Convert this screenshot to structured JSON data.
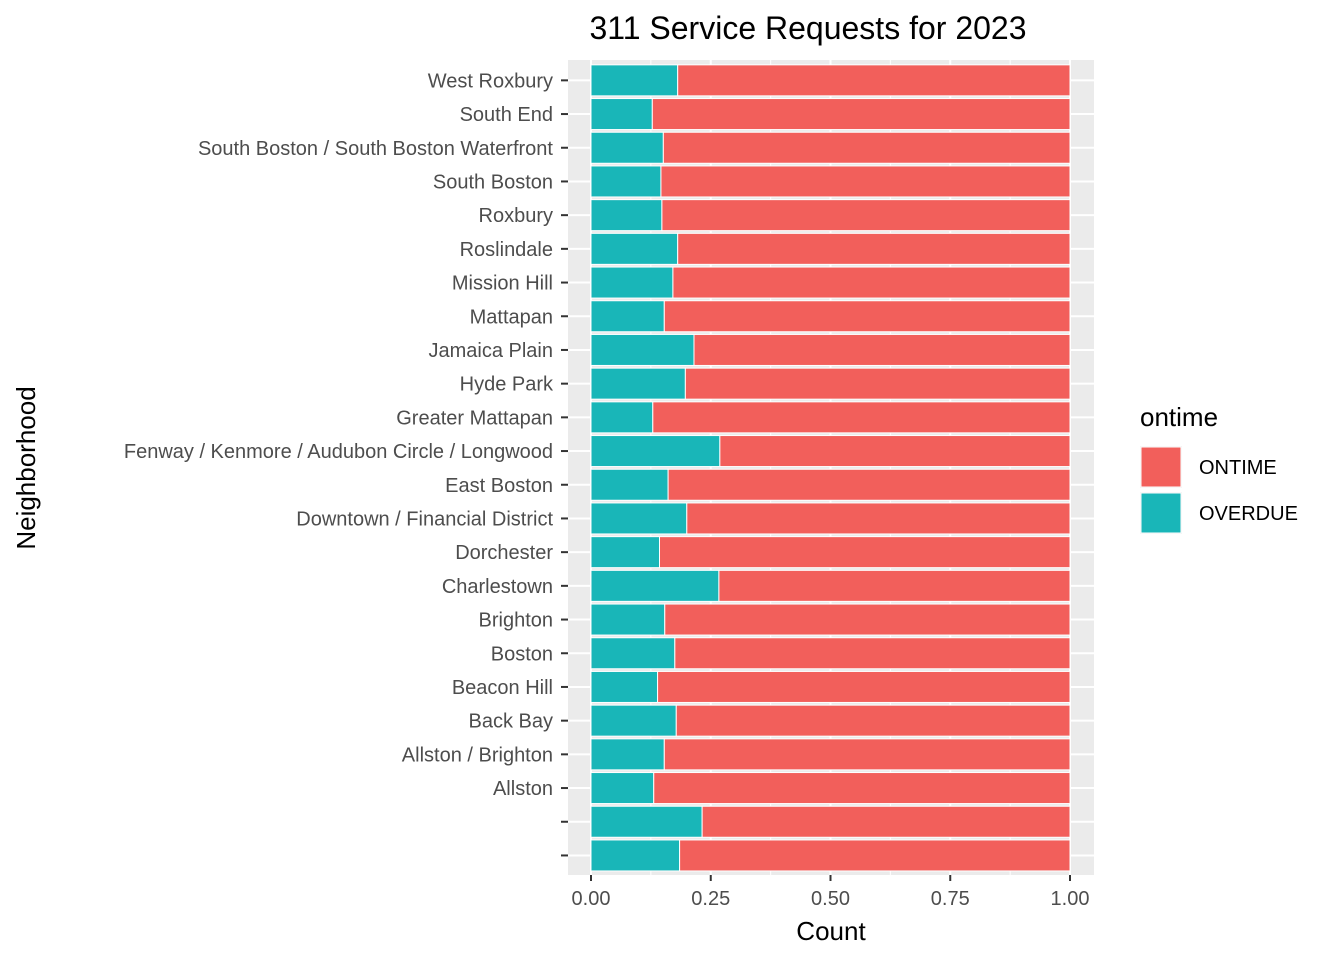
{
  "chart_data": {
    "type": "bar",
    "orientation": "horizontal",
    "stacked": true,
    "title": "311 Service Requests for 2023",
    "xlabel": "Count",
    "ylabel": "Neighborhood",
    "xlim": [
      0,
      1
    ],
    "x_ticks": [
      "0.00",
      "0.25",
      "0.50",
      "0.75",
      "1.00"
    ],
    "x_tick_values": [
      0,
      0.25,
      0.5,
      0.75,
      1.0
    ],
    "grid": true,
    "legend": {
      "title": "ontime",
      "position": "right"
    },
    "categories": [
      "West Roxbury",
      "South End",
      "South Boston / South Boston Waterfront",
      "South Boston",
      "Roxbury",
      "Roslindale",
      "Mission Hill",
      "Mattapan",
      "Jamaica Plain",
      "Hyde Park",
      "Greater Mattapan",
      "Fenway / Kenmore / Audubon Circle / Longwood",
      "East Boston",
      "Downtown / Financial District",
      "Dorchester",
      "Charlestown",
      "Brighton",
      "Boston",
      "Beacon Hill",
      "Back Bay",
      "Allston / Brighton",
      "Allston",
      "",
      ""
    ],
    "series": [
      {
        "name": "OVERDUE",
        "color": "#19b6b8",
        "values": [
          0.181,
          0.128,
          0.151,
          0.146,
          0.148,
          0.181,
          0.171,
          0.153,
          0.215,
          0.197,
          0.129,
          0.269,
          0.161,
          0.2,
          0.143,
          0.267,
          0.154,
          0.175,
          0.139,
          0.178,
          0.153,
          0.131,
          0.232,
          0.185
        ]
      },
      {
        "name": "ONTIME",
        "color": "#f25f5b",
        "values": [
          0.819,
          0.872,
          0.849,
          0.854,
          0.852,
          0.819,
          0.829,
          0.847,
          0.785,
          0.803,
          0.871,
          0.731,
          0.839,
          0.8,
          0.857,
          0.733,
          0.846,
          0.825,
          0.861,
          0.822,
          0.847,
          0.869,
          0.768,
          0.815
        ]
      }
    ],
    "legend_order": [
      "ONTIME",
      "OVERDUE"
    ]
  }
}
